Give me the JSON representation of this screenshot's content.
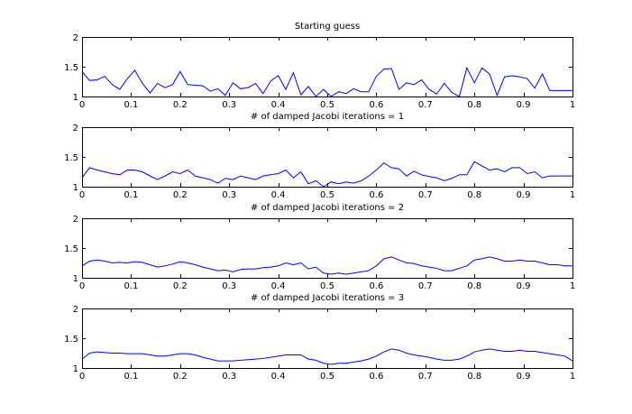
{
  "chart_data": [
    {
      "type": "line",
      "title": "Starting guess",
      "xlim": [
        0,
        1
      ],
      "ylim": [
        1,
        2
      ],
      "xticks": [
        "0",
        "0.1",
        "0.2",
        "0.3",
        "0.4",
        "0.5",
        "0.6",
        "0.7",
        "0.8",
        "0.9",
        "1"
      ],
      "yticks": [
        "1",
        "1.5",
        "2"
      ],
      "color": "#0000ff",
      "x": [
        0,
        0.0154,
        0.0308,
        0.0462,
        0.0615,
        0.0769,
        0.0923,
        0.1077,
        0.1231,
        0.1385,
        0.1538,
        0.1692,
        0.1846,
        0.2,
        0.2154,
        0.2308,
        0.2462,
        0.2615,
        0.2769,
        0.2923,
        0.3077,
        0.3231,
        0.3385,
        0.3538,
        0.3692,
        0.3846,
        0.4,
        0.4154,
        0.4308,
        0.4462,
        0.4615,
        0.4769,
        0.4923,
        0.5077,
        0.5231,
        0.5385,
        0.5538,
        0.5692,
        0.5846,
        0.6,
        0.6154,
        0.6308,
        0.6462,
        0.6615,
        0.6769,
        0.6923,
        0.7077,
        0.7231,
        0.7385,
        0.7538,
        0.7692,
        0.7846,
        0.8,
        0.8154,
        0.8308,
        0.8462,
        0.8615,
        0.8769,
        0.8923,
        0.9077,
        0.9231,
        0.9385,
        0.9538,
        0.9692,
        0.9846,
        1
      ],
      "y": [
        1.42,
        1.27,
        1.28,
        1.34,
        1.2,
        1.12,
        1.3,
        1.44,
        1.22,
        1.06,
        1.22,
        1.15,
        1.2,
        1.42,
        1.2,
        1.19,
        1.18,
        1.09,
        1.13,
        1.02,
        1.23,
        1.13,
        1.15,
        1.22,
        1.05,
        1.26,
        1.35,
        1.12,
        1.4,
        1.03,
        1.17,
        1.0,
        1.12,
        1.0,
        1.08,
        1.05,
        1.13,
        1.08,
        1.08,
        1.34,
        1.46,
        1.47,
        1.12,
        1.23,
        1.2,
        1.28,
        1.12,
        1.04,
        1.22,
        1.07,
        1.0,
        1.48,
        1.23,
        1.48,
        1.38,
        1.02,
        1.33,
        1.35,
        1.33,
        1.3,
        1.14,
        1.38,
        1.1,
        1.1,
        1.1,
        1.1
      ]
    },
    {
      "type": "line",
      "title": "# of damped Jacobi iterations = 1",
      "xlim": [
        0,
        1
      ],
      "ylim": [
        1,
        2
      ],
      "xticks": [
        "0",
        "0.1",
        "0.2",
        "0.3",
        "0.4",
        "0.5",
        "0.6",
        "0.7",
        "0.8",
        "0.9",
        "1"
      ],
      "yticks": [
        "1",
        "1.5",
        "2"
      ],
      "color": "#0000ff",
      "x": [
        0,
        0.0154,
        0.0308,
        0.0462,
        0.0615,
        0.0769,
        0.0923,
        0.1077,
        0.1231,
        0.1385,
        0.1538,
        0.1692,
        0.1846,
        0.2,
        0.2154,
        0.2308,
        0.2462,
        0.2615,
        0.2769,
        0.2923,
        0.3077,
        0.3231,
        0.3385,
        0.3538,
        0.3692,
        0.3846,
        0.4,
        0.4154,
        0.4308,
        0.4462,
        0.4615,
        0.4769,
        0.4923,
        0.5077,
        0.5231,
        0.5385,
        0.5538,
        0.5692,
        0.5846,
        0.6,
        0.6154,
        0.6308,
        0.6462,
        0.6615,
        0.6769,
        0.6923,
        0.7077,
        0.7231,
        0.7385,
        0.7538,
        0.7692,
        0.7846,
        0.8,
        0.8154,
        0.8308,
        0.8462,
        0.8615,
        0.8769,
        0.8923,
        0.9077,
        0.9231,
        0.9385,
        0.9538,
        0.9692,
        0.9846,
        1
      ],
      "y": [
        1.15,
        1.32,
        1.28,
        1.25,
        1.22,
        1.2,
        1.28,
        1.28,
        1.25,
        1.18,
        1.12,
        1.18,
        1.25,
        1.22,
        1.28,
        1.18,
        1.15,
        1.12,
        1.06,
        1.14,
        1.12,
        1.18,
        1.15,
        1.12,
        1.18,
        1.2,
        1.22,
        1.28,
        1.15,
        1.25,
        1.05,
        1.1,
        1.0,
        1.08,
        1.05,
        1.08,
        1.06,
        1.1,
        1.18,
        1.28,
        1.4,
        1.32,
        1.3,
        1.18,
        1.26,
        1.2,
        1.17,
        1.15,
        1.1,
        1.14,
        1.2,
        1.2,
        1.42,
        1.35,
        1.28,
        1.3,
        1.25,
        1.32,
        1.32,
        1.22,
        1.25,
        1.15,
        1.18,
        1.18,
        1.18,
        1.18
      ]
    },
    {
      "type": "line",
      "title": "# of damped Jacobi iterations = 2",
      "xlim": [
        0,
        1
      ],
      "ylim": [
        1,
        2
      ],
      "xticks": [
        "0",
        "0.1",
        "0.2",
        "0.3",
        "0.4",
        "0.5",
        "0.6",
        "0.7",
        "0.8",
        "0.9",
        "1"
      ],
      "yticks": [
        "1",
        "1.5",
        "2"
      ],
      "color": "#0000ff",
      "x": [
        0,
        0.0154,
        0.0308,
        0.0462,
        0.0615,
        0.0769,
        0.0923,
        0.1077,
        0.1231,
        0.1385,
        0.1538,
        0.1692,
        0.1846,
        0.2,
        0.2154,
        0.2308,
        0.2462,
        0.2615,
        0.2769,
        0.2923,
        0.3077,
        0.3231,
        0.3385,
        0.3538,
        0.3692,
        0.3846,
        0.4,
        0.4154,
        0.4308,
        0.4462,
        0.4615,
        0.4769,
        0.4923,
        0.5077,
        0.5231,
        0.5385,
        0.5538,
        0.5692,
        0.5846,
        0.6,
        0.6154,
        0.6308,
        0.6462,
        0.6615,
        0.6769,
        0.6923,
        0.7077,
        0.7231,
        0.7385,
        0.7538,
        0.7692,
        0.7846,
        0.8,
        0.8154,
        0.8308,
        0.8462,
        0.8615,
        0.8769,
        0.8923,
        0.9077,
        0.9231,
        0.9385,
        0.9538,
        0.9692,
        0.9846,
        1
      ],
      "y": [
        1.2,
        1.28,
        1.3,
        1.28,
        1.25,
        1.26,
        1.25,
        1.27,
        1.26,
        1.22,
        1.18,
        1.2,
        1.23,
        1.27,
        1.25,
        1.22,
        1.18,
        1.15,
        1.12,
        1.13,
        1.1,
        1.14,
        1.15,
        1.15,
        1.17,
        1.18,
        1.2,
        1.25,
        1.22,
        1.25,
        1.15,
        1.18,
        1.08,
        1.06,
        1.08,
        1.06,
        1.08,
        1.1,
        1.12,
        1.2,
        1.32,
        1.35,
        1.3,
        1.25,
        1.24,
        1.2,
        1.18,
        1.16,
        1.12,
        1.12,
        1.16,
        1.2,
        1.3,
        1.32,
        1.35,
        1.32,
        1.28,
        1.28,
        1.3,
        1.28,
        1.28,
        1.25,
        1.22,
        1.22,
        1.2,
        1.2
      ]
    },
    {
      "type": "line",
      "title": "# of damped Jacobi iterations = 3",
      "xlim": [
        0,
        1
      ],
      "ylim": [
        1,
        2
      ],
      "xticks": [
        "0",
        "0.1",
        "0.2",
        "0.3",
        "0.4",
        "0.5",
        "0.6",
        "0.7",
        "0.8",
        "0.9",
        "1"
      ],
      "yticks": [
        "1",
        "1.5",
        "2"
      ],
      "color": "#0000ff",
      "x": [
        0,
        0.0154,
        0.0308,
        0.0462,
        0.0615,
        0.0769,
        0.0923,
        0.1077,
        0.1231,
        0.1385,
        0.1538,
        0.1692,
        0.1846,
        0.2,
        0.2154,
        0.2308,
        0.2462,
        0.2615,
        0.2769,
        0.2923,
        0.3077,
        0.3231,
        0.3385,
        0.3538,
        0.3692,
        0.3846,
        0.4,
        0.4154,
        0.4308,
        0.4462,
        0.4615,
        0.4769,
        0.4923,
        0.5077,
        0.5231,
        0.5385,
        0.5538,
        0.5692,
        0.5846,
        0.6,
        0.6154,
        0.6308,
        0.6462,
        0.6615,
        0.6769,
        0.6923,
        0.7077,
        0.7231,
        0.7385,
        0.7538,
        0.7692,
        0.7846,
        0.8,
        0.8154,
        0.8308,
        0.8462,
        0.8615,
        0.8769,
        0.8923,
        0.9077,
        0.9231,
        0.9385,
        0.9538,
        0.9692,
        0.9846,
        1
      ],
      "y": [
        1.15,
        1.25,
        1.27,
        1.26,
        1.25,
        1.25,
        1.24,
        1.24,
        1.24,
        1.22,
        1.2,
        1.2,
        1.22,
        1.24,
        1.24,
        1.22,
        1.18,
        1.15,
        1.12,
        1.12,
        1.12,
        1.13,
        1.14,
        1.15,
        1.16,
        1.18,
        1.2,
        1.22,
        1.22,
        1.22,
        1.15,
        1.13,
        1.08,
        1.06,
        1.08,
        1.08,
        1.1,
        1.12,
        1.15,
        1.2,
        1.27,
        1.32,
        1.3,
        1.25,
        1.22,
        1.2,
        1.18,
        1.15,
        1.13,
        1.13,
        1.15,
        1.2,
        1.27,
        1.3,
        1.32,
        1.3,
        1.28,
        1.28,
        1.3,
        1.28,
        1.28,
        1.26,
        1.24,
        1.22,
        1.2,
        1.12
      ]
    }
  ]
}
